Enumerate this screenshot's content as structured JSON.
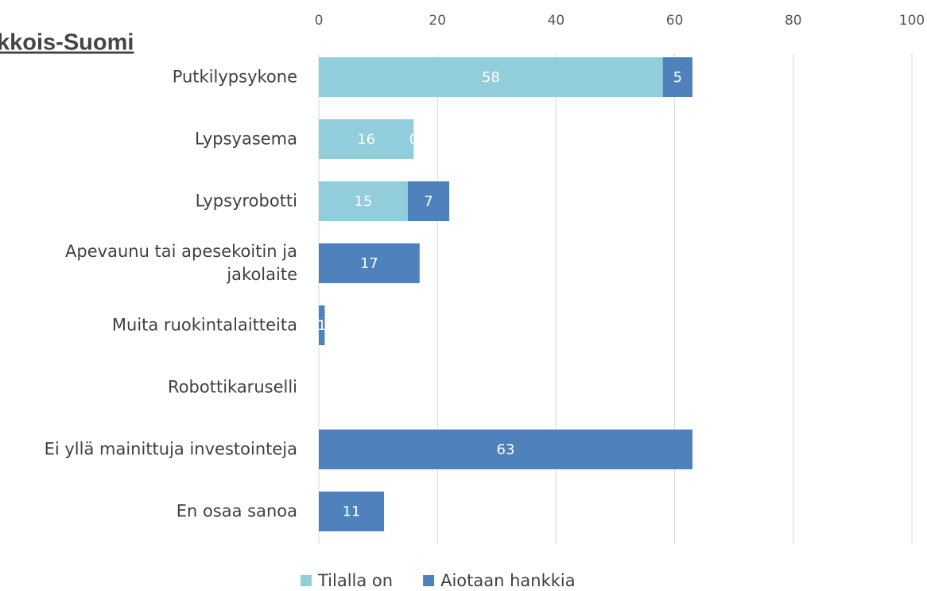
{
  "chart_data": {
    "type": "stacked-bar-horizontal",
    "title": "kkois-Suomi",
    "categories": [
      "Putkilypsykone",
      "Lypsyasema",
      "Lypsyrobotti",
      "Apevaunu tai apesekoitin ja jakolaite",
      "Muita ruokintalaitteita",
      "Robottikaruselli",
      "Ei yllä mainittuja investointeja",
      "En osaa sanoa"
    ],
    "series": [
      {
        "name": "Tilalla on",
        "color": "#92cddc",
        "values": [
          58,
          16,
          15,
          0,
          0,
          0,
          0,
          0
        ],
        "value_labels": [
          "58",
          "16",
          "15",
          null,
          null,
          null,
          null,
          null
        ]
      },
      {
        "name": "Aiotaan hankkia",
        "color": "#4f81bd",
        "values": [
          5,
          0,
          7,
          17,
          1,
          0,
          63,
          11
        ],
        "value_labels": [
          "5",
          "0",
          "7",
          "17",
          "1",
          null,
          "63",
          "11"
        ]
      }
    ],
    "xlim": [
      0,
      100
    ],
    "xticks": [
      0,
      20,
      40,
      60,
      80,
      100
    ],
    "grid": true
  }
}
